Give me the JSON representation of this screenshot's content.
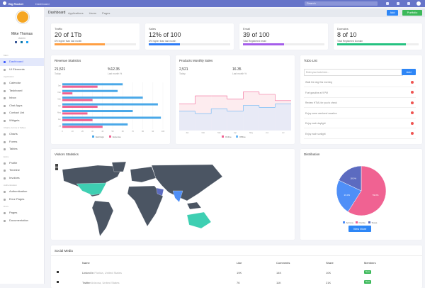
{
  "topbar": {
    "brand": "Big Rocket",
    "breadcrumb": "Dashboard",
    "search": "Search"
  },
  "profile": {
    "name": "Mike Thomas",
    "role": "Admin"
  },
  "sidebar": [
    {
      "heading": "Main",
      "items": [
        "Dashboard",
        "UI Elements"
      ]
    },
    {
      "heading": "Application",
      "items": [
        "Calendar",
        "Taskboard",
        "Inbox",
        "Chat Apps",
        "Contact List",
        "Widgets"
      ]
    },
    {
      "heading": "Charts, Forms & Tables",
      "items": [
        "Charts",
        "Forms",
        "Tables"
      ]
    },
    {
      "heading": "Extra",
      "items": [
        "Profile",
        "Timeline",
        "Invoices"
      ]
    },
    {
      "heading": "Authentication",
      "items": [
        "Authentication",
        "Error Pages"
      ]
    },
    {
      "heading": "Docs",
      "items": [
        "Pages",
        "Documentation"
      ]
    }
  ],
  "subnav": {
    "title": "Dashboard",
    "menus": [
      "Applications",
      "Users",
      "Pages"
    ],
    "buttons": [
      "Add",
      "Portfolio"
    ]
  },
  "stats": [
    {
      "label": "Traffic",
      "value": "20 of 1Tb",
      "note": "6% higher than last month",
      "progress": 62,
      "color": "#ff9f43"
    },
    {
      "label": "Sales",
      "value": "12% of 100",
      "note": "6% higher than last month",
      "progress": 38,
      "color": "#2e7cf6"
    },
    {
      "label": "Email",
      "value": "39 of 100",
      "note": "Total Registered email",
      "progress": 50,
      "color": "#a55eea"
    },
    {
      "label": "Domains",
      "value": "8 of 10",
      "note": "Total Registered Domain",
      "progress": 84,
      "color": "#26c281"
    }
  ],
  "revenue": {
    "title": "Revenue Statistics",
    "stats": [
      {
        "value": "21,521",
        "label": "Today"
      },
      {
        "value": "%12.35",
        "label": "Last month %"
      }
    ],
    "chart": {
      "type": "bar",
      "orientation": "horizontal",
      "categories": [
        "Jan",
        "Feb",
        "Mar",
        "Apr",
        "May",
        "Jun",
        "Jul"
      ],
      "series": [
        {
          "name": "Earnings",
          "color": "#4aa8e8",
          "values": [
            60,
            55,
            80,
            95,
            70,
            98,
            65
          ]
        },
        {
          "name": "Expense",
          "color": "#f06292",
          "values": [
            35,
            10,
            30,
            35,
            25,
            30,
            40
          ]
        }
      ],
      "xlim": [
        0,
        100
      ],
      "xticks": [
        0,
        10,
        20,
        30,
        40,
        50,
        60,
        70,
        80,
        90,
        100
      ]
    }
  },
  "products": {
    "title": "Products Monthly Sales",
    "stats": [
      {
        "value": "2,521",
        "label": "Today"
      },
      {
        "value": "16.35",
        "label": "Last month %"
      }
    ],
    "chart": {
      "type": "step",
      "categories": [
        "Jan",
        "Feb",
        "Mar",
        "Apr",
        "May",
        "Jun",
        "Jul"
      ],
      "series": [
        {
          "name": "Online",
          "color": "#f06292",
          "fill": "#fdecef",
          "values": [
            55,
            72,
            72,
            65,
            80,
            75,
            62
          ]
        },
        {
          "name": "Offline",
          "color": "#64b5f6",
          "fill": "#e8eaf6",
          "values": [
            40,
            35,
            45,
            40,
            52,
            48,
            55
          ]
        }
      ],
      "ylim": [
        0,
        100
      ]
    }
  },
  "todo": {
    "title": "ToDo List",
    "placeholder": "Enter your todo here...",
    "button": "Add",
    "items": [
      "Walk the dog this morning",
      "Fuel gasoline at 9 PM",
      "Review HTML for you to check",
      "Enjoy some weekend vacation",
      "Enjoy each daylight",
      "Enjoy each sunlight"
    ]
  },
  "visitors": {
    "title": "Visitors Statistics"
  },
  "distribution": {
    "title": "Distribution",
    "button": "View More",
    "chart": {
      "type": "pie",
      "series": [
        {
          "name": "Florida",
          "color": "#f06292",
          "value": 59,
          "label": "59.0%"
        },
        {
          "name": "Arizona",
          "color": "#4f8ff7",
          "value": 23,
          "label": "23.0%"
        },
        {
          "name": "Texas",
          "color": "#5c6bc0",
          "value": 18,
          "label": "18.0%"
        }
      ],
      "legend": [
        "Arizona",
        "Florida",
        "Texas"
      ]
    }
  },
  "social": {
    "title": "Social Media",
    "columns": [
      "Name",
      "Like",
      "Comments",
      "Share",
      "Members"
    ],
    "rows": [
      {
        "name": "Linked In",
        "location": "Florida, United States",
        "cells": [
          "19K",
          "14K",
          "10K"
        ],
        "badge": "New"
      },
      {
        "name": "Twitter",
        "location": "Arizona, United States",
        "cells": [
          "7K",
          "11K",
          "21K"
        ],
        "badge": "New"
      }
    ]
  }
}
